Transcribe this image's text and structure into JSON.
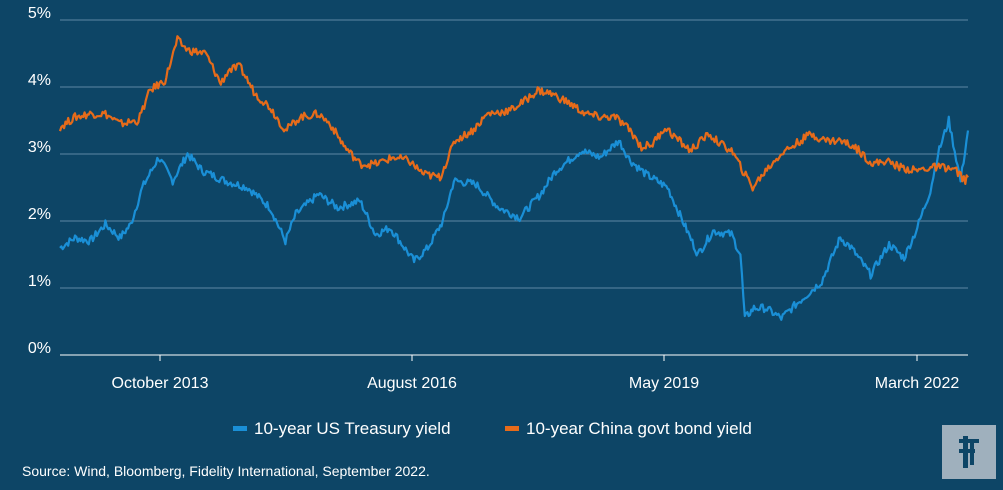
{
  "chart_data": {
    "type": "line",
    "x_ticks": [
      "October 2013",
      "August 2016",
      "May 2019",
      "March 2022"
    ],
    "y_ticks": [
      "0%",
      "1%",
      "2%",
      "3%",
      "4%",
      "5%"
    ],
    "ylim": [
      0,
      5
    ],
    "xlim": [
      "2012-08",
      "2022-08"
    ],
    "grid": true,
    "legend_position": "bottom-center",
    "series": [
      {
        "name": "10-year US Treasury yield",
        "color": "#1a8fd6",
        "points": [
          [
            "2012-08-01",
            1.6
          ],
          [
            "2012-10-01",
            1.75
          ],
          [
            "2012-12-01",
            1.7
          ],
          [
            "2013-02-01",
            1.95
          ],
          [
            "2013-04-01",
            1.75
          ],
          [
            "2013-05-15",
            1.95
          ],
          [
            "2013-07-01",
            2.5
          ],
          [
            "2013-09-05",
            2.95
          ],
          [
            "2013-11-01",
            2.6
          ],
          [
            "2013-12-31",
            3.0
          ],
          [
            "2014-03-01",
            2.75
          ],
          [
            "2014-06-01",
            2.6
          ],
          [
            "2014-09-01",
            2.5
          ],
          [
            "2014-12-01",
            2.2
          ],
          [
            "2015-02-01",
            1.7
          ],
          [
            "2015-03-15",
            2.1
          ],
          [
            "2015-06-15",
            2.4
          ],
          [
            "2015-09-01",
            2.2
          ],
          [
            "2015-12-01",
            2.3
          ],
          [
            "2016-02-01",
            1.8
          ],
          [
            "2016-04-01",
            1.9
          ],
          [
            "2016-07-07",
            1.4
          ],
          [
            "2016-09-01",
            1.6
          ],
          [
            "2016-11-01",
            2.0
          ],
          [
            "2016-12-15",
            2.6
          ],
          [
            "2017-03-15",
            2.55
          ],
          [
            "2017-06-15",
            2.2
          ],
          [
            "2017-09-08",
            2.05
          ],
          [
            "2017-12-01",
            2.4
          ],
          [
            "2018-02-01",
            2.75
          ],
          [
            "2018-05-15",
            3.05
          ],
          [
            "2018-08-01",
            2.95
          ],
          [
            "2018-10-15",
            3.2
          ],
          [
            "2018-12-01",
            2.9
          ],
          [
            "2019-02-01",
            2.7
          ],
          [
            "2019-05-01",
            2.5
          ],
          [
            "2019-07-01",
            2.0
          ],
          [
            "2019-09-01",
            1.5
          ],
          [
            "2019-11-01",
            1.85
          ],
          [
            "2020-01-15",
            1.8
          ],
          [
            "2020-02-20",
            1.5
          ],
          [
            "2020-03-09",
            0.55
          ],
          [
            "2020-04-15",
            0.7
          ],
          [
            "2020-06-01",
            0.7
          ],
          [
            "2020-08-04",
            0.55
          ],
          [
            "2020-10-01",
            0.75
          ],
          [
            "2020-12-01",
            0.95
          ],
          [
            "2021-01-15",
            1.1
          ],
          [
            "2021-03-31",
            1.75
          ],
          [
            "2021-05-15",
            1.6
          ],
          [
            "2021-08-01",
            1.2
          ],
          [
            "2021-10-15",
            1.65
          ],
          [
            "2021-12-15",
            1.45
          ],
          [
            "2022-02-01",
            1.85
          ],
          [
            "2022-03-31",
            2.45
          ],
          [
            "2022-05-01",
            3.0
          ],
          [
            "2022-06-14",
            3.5
          ],
          [
            "2022-08-01",
            2.6
          ],
          [
            "2022-08-31",
            3.35
          ]
        ]
      },
      {
        "name": "10-year China govt bond yield",
        "color": "#e66b1a",
        "points": [
          [
            "2012-08-01",
            3.4
          ],
          [
            "2012-10-01",
            3.55
          ],
          [
            "2012-12-01",
            3.6
          ],
          [
            "2013-02-01",
            3.6
          ],
          [
            "2013-04-01",
            3.45
          ],
          [
            "2013-06-15",
            3.5
          ],
          [
            "2013-08-01",
            3.95
          ],
          [
            "2013-10-01",
            4.1
          ],
          [
            "2013-11-20",
            4.7
          ],
          [
            "2014-01-01",
            4.55
          ],
          [
            "2014-03-15",
            4.5
          ],
          [
            "2014-05-15",
            4.05
          ],
          [
            "2014-06-15",
            4.25
          ],
          [
            "2014-08-01",
            4.3
          ],
          [
            "2014-10-01",
            3.9
          ],
          [
            "2014-12-01",
            3.7
          ],
          [
            "2015-02-01",
            3.35
          ],
          [
            "2015-04-01",
            3.55
          ],
          [
            "2015-06-15",
            3.6
          ],
          [
            "2015-08-01",
            3.45
          ],
          [
            "2015-10-01",
            3.1
          ],
          [
            "2015-12-01",
            2.85
          ],
          [
            "2016-02-01",
            2.85
          ],
          [
            "2016-04-15",
            2.95
          ],
          [
            "2016-06-15",
            2.9
          ],
          [
            "2016-08-15",
            2.7
          ],
          [
            "2016-10-20",
            2.65
          ],
          [
            "2016-12-20",
            3.2
          ],
          [
            "2017-03-01",
            3.35
          ],
          [
            "2017-05-01",
            3.6
          ],
          [
            "2017-08-01",
            3.65
          ],
          [
            "2017-10-01",
            3.8
          ],
          [
            "2017-11-20",
            3.95
          ],
          [
            "2018-01-15",
            3.9
          ],
          [
            "2018-04-01",
            3.75
          ],
          [
            "2018-06-01",
            3.6
          ],
          [
            "2018-08-01",
            3.55
          ],
          [
            "2018-10-01",
            3.55
          ],
          [
            "2018-12-01",
            3.35
          ],
          [
            "2019-01-15",
            3.1
          ],
          [
            "2019-03-01",
            3.15
          ],
          [
            "2019-04-20",
            3.4
          ],
          [
            "2019-06-01",
            3.25
          ],
          [
            "2019-08-01",
            3.05
          ],
          [
            "2019-10-15",
            3.3
          ],
          [
            "2019-12-01",
            3.15
          ],
          [
            "2020-01-15",
            3.05
          ],
          [
            "2020-03-01",
            2.75
          ],
          [
            "2020-04-10",
            2.5
          ],
          [
            "2020-06-01",
            2.75
          ],
          [
            "2020-08-01",
            3.0
          ],
          [
            "2020-10-01",
            3.15
          ],
          [
            "2020-12-01",
            3.3
          ],
          [
            "2021-02-01",
            3.2
          ],
          [
            "2021-04-01",
            3.2
          ],
          [
            "2021-06-01",
            3.1
          ],
          [
            "2021-08-10",
            2.85
          ],
          [
            "2021-10-01",
            2.9
          ],
          [
            "2021-12-01",
            2.8
          ],
          [
            "2022-02-01",
            2.75
          ],
          [
            "2022-04-01",
            2.8
          ],
          [
            "2022-06-01",
            2.8
          ],
          [
            "2022-07-15",
            2.75
          ],
          [
            "2022-08-20",
            2.6
          ],
          [
            "2022-08-31",
            2.65
          ]
        ]
      }
    ]
  },
  "source": "Source: Wind, Bloomberg, Fidelity International, September 2022.",
  "colors": {
    "background": "#0d4566",
    "grid": "#5d87a4",
    "logo_bg": "#9fb0bd",
    "logo_mark": "#0d4566"
  },
  "logo": {
    "icon": "fidelity-logo-icon"
  }
}
